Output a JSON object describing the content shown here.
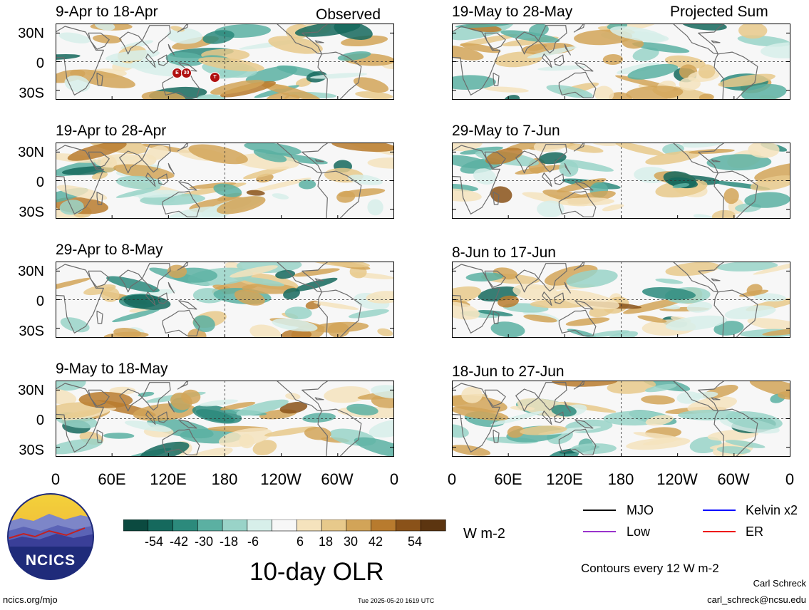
{
  "header": {
    "observed_label": "Observed",
    "projected_label": "Projected Sum"
  },
  "panels": {
    "observed": [
      {
        "title": "9-Apr to 18-Apr"
      },
      {
        "title": "19-Apr to 28-Apr"
      },
      {
        "title": "29-Apr to 8-May"
      },
      {
        "title": "9-May to 18-May"
      }
    ],
    "projected": [
      {
        "title": "19-May to 28-May"
      },
      {
        "title": "29-May to 7-Jun"
      },
      {
        "title": "8-Jun to 17-Jun"
      },
      {
        "title": "18-Jun to 27-Jun"
      }
    ]
  },
  "axes": {
    "y_ticks": [
      "30N",
      "0",
      "30S"
    ],
    "x_ticks": [
      "0",
      "60E",
      "120E",
      "180",
      "120W",
      "60W",
      "0"
    ]
  },
  "markers": [
    "E",
    "30",
    "T"
  ],
  "colorbar": {
    "labels": [
      "-54",
      "-42",
      "-30",
      "-18",
      "-6",
      "6",
      "18",
      "30",
      "42",
      "54"
    ],
    "units": "W m-2",
    "colors": [
      "#0b4a40",
      "#15695d",
      "#2c8a7c",
      "#5bb0a2",
      "#99d3c8",
      "#d7efea",
      "#f7f7f7",
      "#f5e3bd",
      "#e7c98b",
      "#d2a458",
      "#b87b2e",
      "#8a5219",
      "#5c3510"
    ]
  },
  "legend": {
    "items": [
      {
        "label": "MJO",
        "color": "#000000"
      },
      {
        "label": "Kelvin x2",
        "color": "#0000ff"
      },
      {
        "label": "Low",
        "color": "#9933cc"
      },
      {
        "label": "ER",
        "color": "#ee0000"
      }
    ],
    "contours": "Contours every 12 W m-2"
  },
  "footer": {
    "title": "10-day OLR",
    "logo_text": "NCICS",
    "url": "ncics.org/mjo",
    "timestamp": "Tue 2025-05-20 1619 UTC",
    "author": "Carl Schreck",
    "email": "carl_schreck@ncsu.edu"
  }
}
